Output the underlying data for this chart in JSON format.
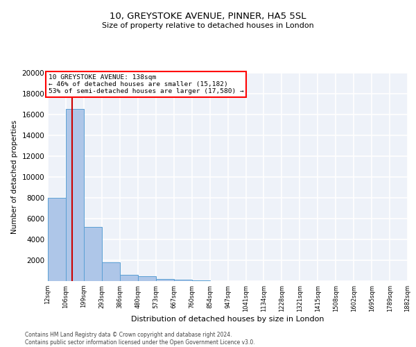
{
  "title1": "10, GREYSTOKE AVENUE, PINNER, HA5 5SL",
  "title2": "Size of property relative to detached houses in London",
  "xlabel": "Distribution of detached houses by size in London",
  "ylabel": "Number of detached properties",
  "property_size": 138,
  "annotation_line0": "10 GREYSTOKE AVENUE: 138sqm",
  "annotation_line1": "← 46% of detached houses are smaller (15,182)",
  "annotation_line2": "53% of semi-detached houses are larger (17,580) →",
  "footer1": "Contains HM Land Registry data © Crown copyright and database right 2024.",
  "footer2": "Contains public sector information licensed under the Open Government Licence v3.0.",
  "bin_edges": [
    12,
    106,
    199,
    293,
    386,
    480,
    573,
    667,
    760,
    854,
    947,
    1041,
    1134,
    1228,
    1321,
    1415,
    1508,
    1602,
    1695,
    1789,
    1882
  ],
  "bar_values": [
    8000,
    16500,
    5200,
    1800,
    580,
    490,
    195,
    145,
    75,
    18,
    0,
    0,
    0,
    0,
    0,
    0,
    0,
    0,
    0,
    0
  ],
  "bar_color": "#aec6e8",
  "bar_edge_color": "#5a9fd4",
  "red_line_color": "#cc0000",
  "background_color": "#eef2f9",
  "grid_color": "#ffffff",
  "ylim_max": 20000,
  "ytick_values": [
    0,
    2000,
    4000,
    6000,
    8000,
    10000,
    12000,
    14000,
    16000,
    18000,
    20000
  ]
}
